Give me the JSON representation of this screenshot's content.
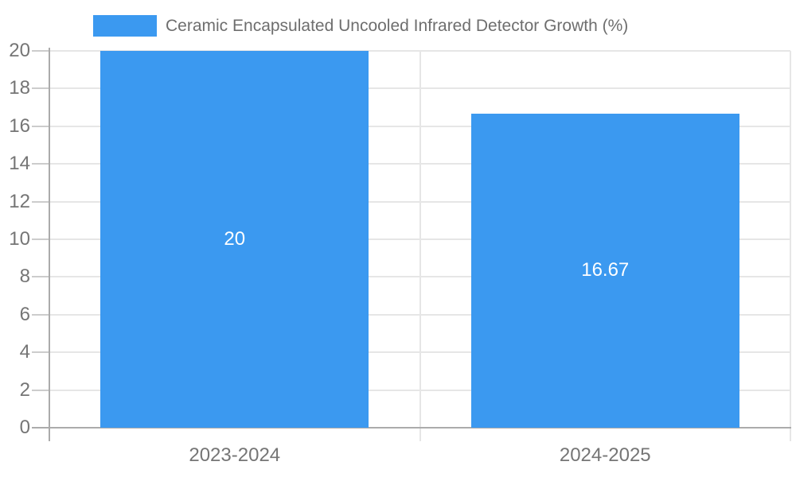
{
  "chart_data": {
    "type": "bar",
    "title": "Ceramic Encapsulated Uncooled Infrared Detector Growth (%)",
    "legend": {
      "position": "top-left",
      "items": [
        {
          "label": "Ceramic Encapsulated Uncooled Infrared Detector Growth (%)"
        }
      ]
    },
    "categories": [
      "2023-2024",
      "2024-2025"
    ],
    "series": [
      {
        "name": "Ceramic Encapsulated Uncooled Infrared Detector Growth (%)",
        "values": [
          20,
          16.67
        ]
      }
    ],
    "value_labels": [
      "20",
      "16.67"
    ],
    "xlabel": "",
    "ylabel": "",
    "ylim": [
      0,
      20
    ],
    "yticks": [
      0,
      2,
      4,
      6,
      8,
      10,
      12,
      14,
      16,
      18,
      20
    ],
    "grid": true,
    "colors": {
      "bar": "#3b99f0",
      "grid": "#e6e6e6",
      "axis": "#ababab",
      "tick": "#cccccc",
      "axis_label": "#757575",
      "legend_text": "#6e6e6e",
      "value_label": "#ffffff",
      "background": "#ffffff"
    }
  }
}
